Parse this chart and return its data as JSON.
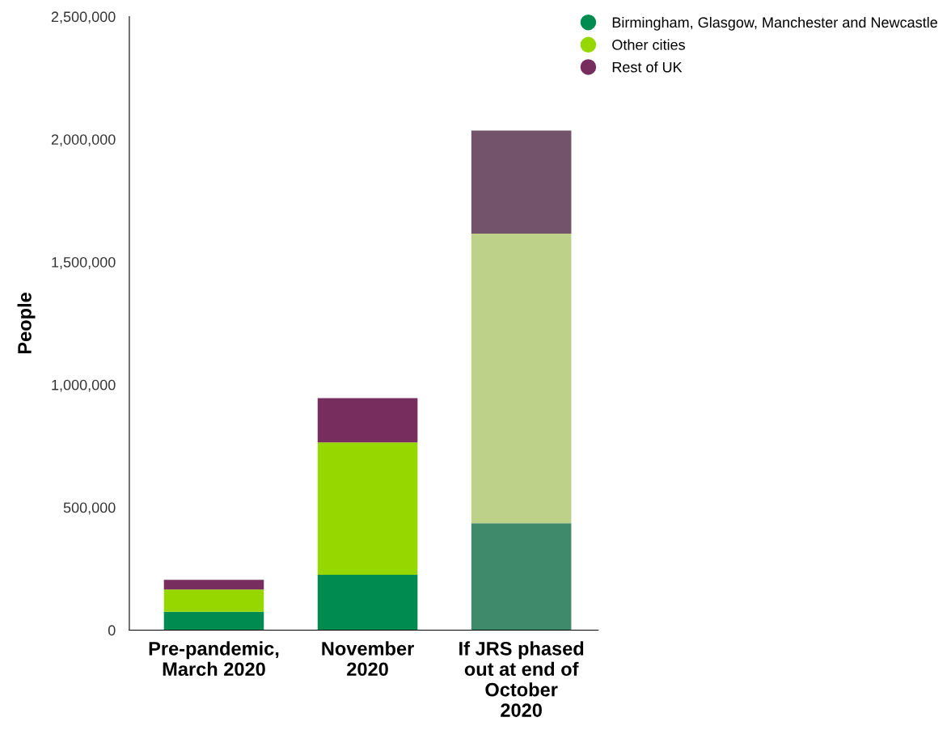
{
  "chart_data": {
    "type": "bar",
    "stacked": true,
    "ylabel": "People",
    "categories": [
      "Pre-pandemic,\nMarch 2020",
      "November\n2020",
      "If JRS phased\nout at end of\nOctober\n2020"
    ],
    "series": [
      {
        "name": "Birmingham, Glasgow, Manchester and Newcastle",
        "color": "#008c50",
        "colors": [
          "#008c50",
          "#008c50",
          "#3f8a6a"
        ],
        "values": [
          75000,
          225000,
          435000
        ]
      },
      {
        "name": "Other cities",
        "color": "#96d700",
        "colors": [
          "#96d700",
          "#96d700",
          "#bdd189"
        ],
        "values": [
          90000,
          540000,
          1180000
        ]
      },
      {
        "name": "Rest of UK",
        "color": "#782d5f",
        "colors": [
          "#782d5f",
          "#782d5f",
          "#72536b"
        ],
        "values": [
          40000,
          180000,
          420000
        ]
      }
    ],
    "ylim": [
      0,
      2500000
    ],
    "yticks": [
      {
        "value": 0,
        "label": "0"
      },
      {
        "value": 500000,
        "label": "500,000"
      },
      {
        "value": 1000000,
        "label": "1,000,000"
      },
      {
        "value": 1500000,
        "label": "1,500,000"
      },
      {
        "value": 2000000,
        "label": "2,000,000"
      },
      {
        "value": 2500000,
        "label": "2,500,000"
      }
    ],
    "grid": false,
    "legend": "top right"
  }
}
